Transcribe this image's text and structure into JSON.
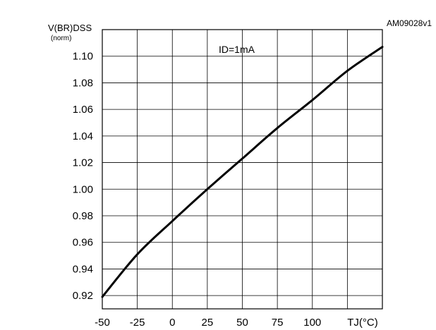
{
  "figure_id": "AM09028v1",
  "chart_data": {
    "type": "line",
    "title": "",
    "ylabel": "V(BR)DSS",
    "ylabel_sub": "(norm)",
    "xlabel": "TJ(°C)",
    "annotation": "ID=1mA",
    "x_ticks": [
      -50,
      -25,
      0,
      25,
      50,
      75,
      100
    ],
    "x_tick_labels": [
      "-50",
      "-25",
      "0",
      "25",
      "50",
      "75",
      "100"
    ],
    "y_ticks": [
      0.92,
      0.94,
      0.96,
      0.98,
      1.0,
      1.02,
      1.04,
      1.06,
      1.08,
      1.1
    ],
    "y_tick_labels": [
      "0.92",
      "0.94",
      "0.96",
      "0.98",
      "1.00",
      "1.02",
      "1.04",
      "1.06",
      "1.08",
      "1.10"
    ],
    "xlim": [
      -50,
      150
    ],
    "ylim": [
      0.91,
      1.12
    ],
    "grid": true,
    "series": [
      {
        "x": [
          -50,
          -25,
          0,
          25,
          50,
          75,
          100,
          125,
          150
        ],
        "y": [
          0.919,
          0.951,
          0.976,
          1.0,
          1.023,
          1.046,
          1.067,
          1.089,
          1.107
        ]
      }
    ]
  }
}
